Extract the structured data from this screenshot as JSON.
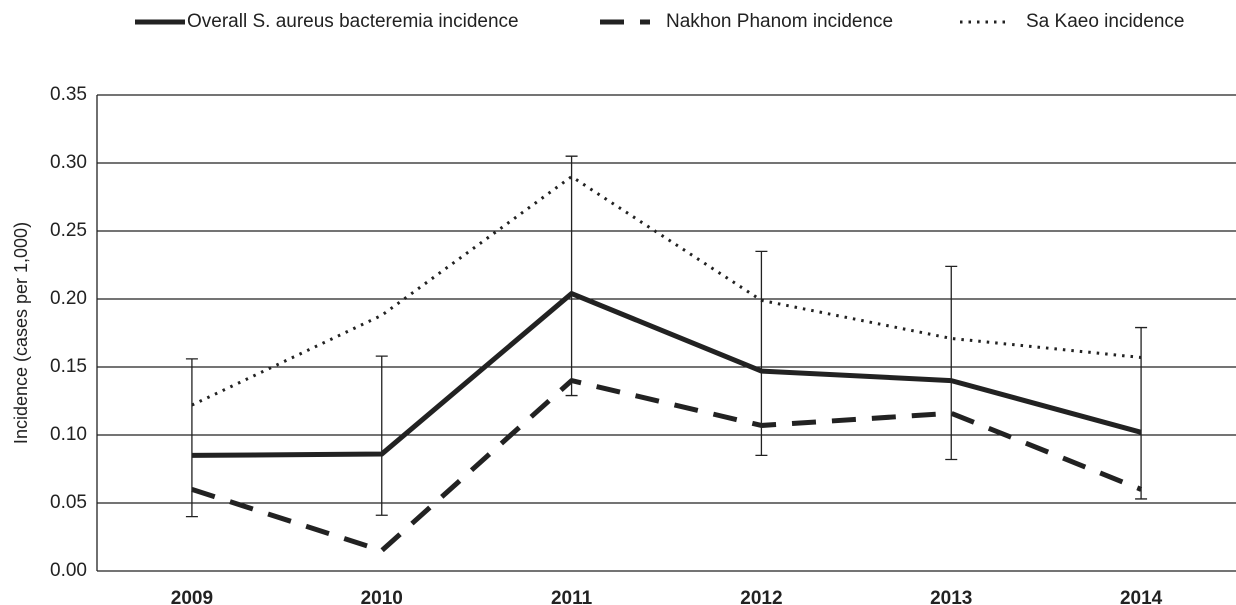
{
  "chart_data": {
    "type": "line",
    "y_label": "Incidence (cases per 1,000)",
    "categories": [
      "2009",
      "2010",
      "2011",
      "2012",
      "2013",
      "2014"
    ],
    "series": [
      {
        "name": "Overall S. aureus bacteremia incidence",
        "color": "#222222",
        "style": "solid",
        "values": [
          0.085,
          0.086,
          0.204,
          0.147,
          0.14,
          0.102
        ],
        "ci_lower": [
          0.04,
          0.041,
          0.129,
          0.085,
          0.082,
          0.053
        ],
        "ci_upper": [
          0.156,
          0.158,
          0.305,
          0.235,
          0.224,
          0.179
        ]
      },
      {
        "name": "Nakhon Phanom incidence",
        "color": "#222222",
        "style": "dashed",
        "values": [
          0.06,
          0.015,
          0.14,
          0.107,
          0.116,
          0.06
        ]
      },
      {
        "name": "Sa Kaeo incidence",
        "color": "#222222",
        "style": "dotted",
        "values": [
          0.122,
          0.188,
          0.29,
          0.199,
          0.171,
          0.157
        ]
      }
    ],
    "ylim": [
      0,
      0.35
    ],
    "yticks": [
      {
        "value": 0,
        "label": "0.00"
      },
      {
        "value": 0.05,
        "label": "0.05"
      },
      {
        "value": 0.1,
        "label": "0.10"
      },
      {
        "value": 0.15,
        "label": "0.15"
      },
      {
        "value": 0.2,
        "label": "0.20"
      },
      {
        "value": 0.25,
        "label": "0.25"
      },
      {
        "value": 0.3,
        "label": "0.30"
      },
      {
        "value": 0.35,
        "label": "0.35"
      }
    ],
    "grid": true,
    "legend": "top"
  }
}
